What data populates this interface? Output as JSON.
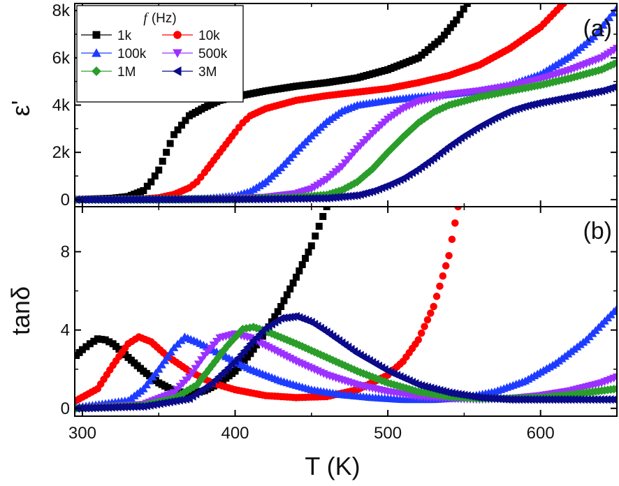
{
  "chart_data": [
    {
      "panel_label": "(a)",
      "type": "scatter",
      "ylabel": "ε'",
      "xlim": [
        295,
        650
      ],
      "ylim": [
        -300,
        8300
      ],
      "yticks": [
        0,
        2000,
        4000,
        6000,
        8000
      ],
      "yticklabels": [
        "0",
        "2k",
        "4k",
        "6k",
        "8k"
      ],
      "legend": {
        "title_symbol": "f",
        "title_unit": "(Hz)",
        "placement": "top-left"
      },
      "series": [
        {
          "name": "1k",
          "color": "#000000",
          "marker": "square",
          "points": [
            [
              296,
              0
            ],
            [
              320,
              60
            ],
            [
              330,
              130
            ],
            [
              340,
              380
            ],
            [
              345,
              750
            ],
            [
              350,
              1250
            ],
            [
              355,
              2000
            ],
            [
              360,
              2750
            ],
            [
              365,
              3150
            ],
            [
              370,
              3550
            ],
            [
              380,
              3900
            ],
            [
              390,
              4200
            ],
            [
              400,
              4350
            ],
            [
              420,
              4600
            ],
            [
              440,
              4800
            ],
            [
              460,
              4950
            ],
            [
              480,
              5150
            ],
            [
              500,
              5500
            ],
            [
              520,
              6000
            ],
            [
              535,
              6800
            ],
            [
              545,
              7600
            ],
            [
              552,
              8300
            ]
          ]
        },
        {
          "name": "10k",
          "color": "#ff0000",
          "marker": "circle",
          "points": [
            [
              296,
              0
            ],
            [
              340,
              30
            ],
            [
              350,
              80
            ],
            [
              360,
              220
            ],
            [
              370,
              500
            ],
            [
              375,
              750
            ],
            [
              380,
              1150
            ],
            [
              390,
              2000
            ],
            [
              400,
              2850
            ],
            [
              405,
              3250
            ],
            [
              410,
              3550
            ],
            [
              420,
              3850
            ],
            [
              440,
              4200
            ],
            [
              460,
              4400
            ],
            [
              480,
              4550
            ],
            [
              500,
              4700
            ],
            [
              520,
              4950
            ],
            [
              540,
              5250
            ],
            [
              560,
              5700
            ],
            [
              580,
              6400
            ],
            [
              600,
              7300
            ],
            [
              615,
              8300
            ]
          ]
        },
        {
          "name": "100k",
          "color": "#1e3cff",
          "marker": "triangle-up",
          "points": [
            [
              296,
              0
            ],
            [
              360,
              0
            ],
            [
              380,
              40
            ],
            [
              400,
              150
            ],
            [
              410,
              350
            ],
            [
              420,
              750
            ],
            [
              430,
              1350
            ],
            [
              440,
              2050
            ],
            [
              450,
              2700
            ],
            [
              460,
              3300
            ],
            [
              470,
              3750
            ],
            [
              480,
              4000
            ],
            [
              500,
              4200
            ],
            [
              520,
              4350
            ],
            [
              540,
              4450
            ],
            [
              560,
              4600
            ],
            [
              580,
              4850
            ],
            [
              600,
              5300
            ],
            [
              620,
              6100
            ],
            [
              635,
              6900
            ],
            [
              645,
              7700
            ],
            [
              650,
              8100
            ]
          ]
        },
        {
          "name": "500k",
          "color": "#9b30ff",
          "marker": "triangle-down",
          "points": [
            [
              296,
              0
            ],
            [
              380,
              30
            ],
            [
              420,
              100
            ],
            [
              440,
              250
            ],
            [
              450,
              450
            ],
            [
              460,
              850
            ],
            [
              470,
              1400
            ],
            [
              480,
              2150
            ],
            [
              490,
              2800
            ],
            [
              500,
              3400
            ],
            [
              510,
              3850
            ],
            [
              520,
              4150
            ],
            [
              540,
              4450
            ],
            [
              560,
              4600
            ],
            [
              580,
              4800
            ],
            [
              600,
              5100
            ],
            [
              620,
              5500
            ],
            [
              640,
              6000
            ],
            [
              650,
              6400
            ]
          ]
        },
        {
          "name": "1M",
          "color": "#2a9d2a",
          "marker": "diamond",
          "points": [
            [
              296,
              0
            ],
            [
              400,
              20
            ],
            [
              440,
              100
            ],
            [
              460,
              200
            ],
            [
              470,
              400
            ],
            [
              480,
              750
            ],
            [
              490,
              1300
            ],
            [
              500,
              2000
            ],
            [
              510,
              2650
            ],
            [
              520,
              3250
            ],
            [
              530,
              3700
            ],
            [
              540,
              4000
            ],
            [
              560,
              4350
            ],
            [
              580,
              4600
            ],
            [
              600,
              4850
            ],
            [
              620,
              5150
            ],
            [
              640,
              5500
            ],
            [
              650,
              5800
            ]
          ]
        },
        {
          "name": "3M",
          "color": "#0a0a8a",
          "marker": "triangle-left",
          "points": [
            [
              296,
              0
            ],
            [
              420,
              20
            ],
            [
              460,
              60
            ],
            [
              480,
              180
            ],
            [
              490,
              350
            ],
            [
              500,
              600
            ],
            [
              510,
              900
            ],
            [
              520,
              1300
            ],
            [
              530,
              1750
            ],
            [
              540,
              2250
            ],
            [
              550,
              2700
            ],
            [
              560,
              3100
            ],
            [
              570,
              3450
            ],
            [
              580,
              3750
            ],
            [
              590,
              3950
            ],
            [
              600,
              4100
            ],
            [
              620,
              4350
            ],
            [
              640,
              4600
            ],
            [
              650,
              4800
            ]
          ]
        }
      ]
    },
    {
      "panel_label": "(b)",
      "type": "scatter",
      "ylabel": "tanδ",
      "xlabel": "T (K)",
      "xlim": [
        295,
        650
      ],
      "ylim": [
        -0.4,
        10.3
      ],
      "yticks": [
        0,
        4,
        8
      ],
      "yticklabels": [
        "0",
        "4",
        "8"
      ],
      "xticks": [
        300,
        400,
        500,
        600
      ],
      "xticklabels": [
        "300",
        "400",
        "500",
        "600"
      ],
      "series": [
        {
          "name": "1k",
          "color": "#000000",
          "marker": "square",
          "points": [
            [
              296,
              2.7
            ],
            [
              300,
              3.0
            ],
            [
              305,
              3.3
            ],
            [
              310,
              3.55
            ],
            [
              315,
              3.5
            ],
            [
              320,
              3.3
            ],
            [
              330,
              2.6
            ],
            [
              340,
              1.9
            ],
            [
              350,
              1.3
            ],
            [
              360,
              0.9
            ],
            [
              370,
              0.75
            ],
            [
              380,
              0.9
            ],
            [
              390,
              1.3
            ],
            [
              400,
              1.9
            ],
            [
              410,
              2.8
            ],
            [
              420,
              3.9
            ],
            [
              430,
              5.2
            ],
            [
              440,
              6.7
            ],
            [
              450,
              8.3
            ],
            [
              455,
              9.3
            ],
            [
              460,
              10.3
            ]
          ]
        },
        {
          "name": "10k",
          "color": "#ff0000",
          "marker": "circle",
          "points": [
            [
              296,
              0.4
            ],
            [
              310,
              1.0
            ],
            [
              320,
              2.2
            ],
            [
              330,
              3.3
            ],
            [
              337,
              3.65
            ],
            [
              345,
              3.4
            ],
            [
              355,
              2.7
            ],
            [
              370,
              1.9
            ],
            [
              385,
              1.3
            ],
            [
              400,
              0.95
            ],
            [
              420,
              0.65
            ],
            [
              440,
              0.55
            ],
            [
              460,
              0.6
            ],
            [
              480,
              0.95
            ],
            [
              500,
              1.7
            ],
            [
              510,
              2.4
            ],
            [
              520,
              3.5
            ],
            [
              530,
              5.2
            ],
            [
              540,
              7.8
            ],
            [
              546,
              10.3
            ]
          ]
        },
        {
          "name": "100k",
          "color": "#1e3cff",
          "marker": "triangle-up",
          "points": [
            [
              296,
              0.05
            ],
            [
              330,
              0.4
            ],
            [
              340,
              1.0
            ],
            [
              350,
              2.0
            ],
            [
              360,
              3.1
            ],
            [
              367,
              3.65
            ],
            [
              375,
              3.4
            ],
            [
              390,
              2.8
            ],
            [
              410,
              2.0
            ],
            [
              430,
              1.4
            ],
            [
              450,
              0.95
            ],
            [
              470,
              0.7
            ],
            [
              490,
              0.55
            ],
            [
              510,
              0.45
            ],
            [
              530,
              0.45
            ],
            [
              550,
              0.55
            ],
            [
              570,
              0.85
            ],
            [
              590,
              1.4
            ],
            [
              610,
              2.3
            ],
            [
              630,
              3.5
            ],
            [
              650,
              5.1
            ]
          ]
        },
        {
          "name": "500k",
          "color": "#9b30ff",
          "marker": "triangle-down",
          "points": [
            [
              296,
              0.0
            ],
            [
              340,
              0.2
            ],
            [
              360,
              0.8
            ],
            [
              370,
              1.6
            ],
            [
              380,
              2.7
            ],
            [
              390,
              3.6
            ],
            [
              400,
              3.8
            ],
            [
              410,
              3.6
            ],
            [
              420,
              3.2
            ],
            [
              440,
              2.4
            ],
            [
              460,
              1.7
            ],
            [
              480,
              1.2
            ],
            [
              500,
              0.85
            ],
            [
              520,
              0.6
            ],
            [
              540,
              0.5
            ],
            [
              560,
              0.45
            ],
            [
              580,
              0.5
            ],
            [
              600,
              0.65
            ],
            [
              620,
              0.9
            ],
            [
              640,
              1.3
            ],
            [
              650,
              1.6
            ]
          ]
        },
        {
          "name": "1M",
          "color": "#2a9d2a",
          "marker": "diamond",
          "points": [
            [
              296,
              0.0
            ],
            [
              340,
              0.15
            ],
            [
              360,
              0.5
            ],
            [
              375,
              1.2
            ],
            [
              385,
              2.2
            ],
            [
              395,
              3.2
            ],
            [
              405,
              4.05
            ],
            [
              412,
              4.15
            ],
            [
              420,
              3.95
            ],
            [
              440,
              3.3
            ],
            [
              460,
              2.6
            ],
            [
              480,
              1.9
            ],
            [
              500,
              1.3
            ],
            [
              520,
              0.85
            ],
            [
              540,
              0.6
            ],
            [
              560,
              0.5
            ],
            [
              580,
              0.5
            ],
            [
              600,
              0.55
            ],
            [
              620,
              0.7
            ],
            [
              640,
              0.9
            ],
            [
              650,
              1.0
            ]
          ]
        },
        {
          "name": "3M",
          "color": "#0a0a8a",
          "marker": "triangle-left",
          "points": [
            [
              296,
              0.0
            ],
            [
              340,
              0.1
            ],
            [
              370,
              0.5
            ],
            [
              385,
              1.3
            ],
            [
              400,
              2.4
            ],
            [
              410,
              3.3
            ],
            [
              420,
              4.1
            ],
            [
              430,
              4.6
            ],
            [
              440,
              4.7
            ],
            [
              450,
              4.4
            ],
            [
              460,
              3.9
            ],
            [
              480,
              2.8
            ],
            [
              500,
              1.9
            ],
            [
              520,
              1.2
            ],
            [
              540,
              0.8
            ],
            [
              560,
              0.55
            ],
            [
              580,
              0.45
            ],
            [
              600,
              0.45
            ],
            [
              620,
              0.45
            ],
            [
              650,
              0.45
            ]
          ]
        }
      ]
    }
  ]
}
